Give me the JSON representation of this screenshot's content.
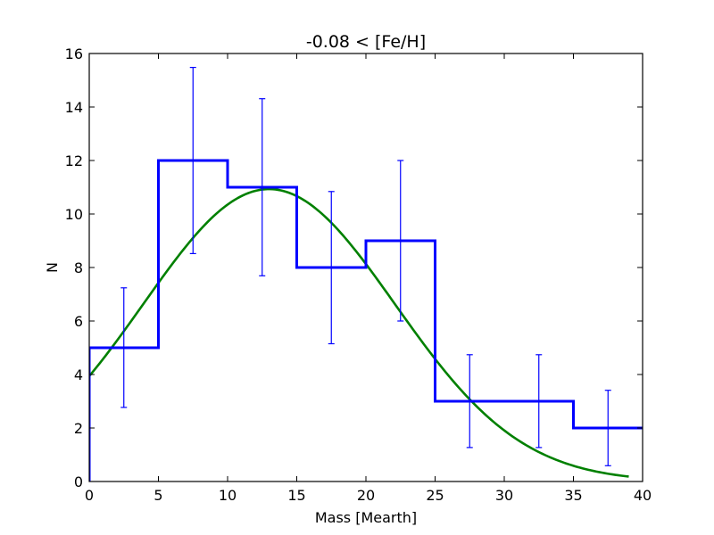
{
  "chart_data": {
    "type": "histogram",
    "title": "-0.08 < [Fe/H]",
    "xlabel": "Mass [Mearth]",
    "ylabel": "N",
    "xlim": [
      0,
      40
    ],
    "ylim": [
      0,
      16
    ],
    "xticks": [
      0,
      5,
      10,
      15,
      20,
      25,
      30,
      35,
      40
    ],
    "yticks": [
      0,
      2,
      4,
      6,
      8,
      10,
      12,
      14,
      16
    ],
    "grid": false,
    "histogram": {
      "bin_edges": [
        0,
        5,
        10,
        15,
        20,
        25,
        30,
        35,
        40
      ],
      "counts": [
        5,
        12,
        11,
        8,
        9,
        3,
        3,
        2
      ],
      "color": "#0000ff"
    },
    "errorbars": {
      "x": [
        2.5,
        7.5,
        12.5,
        17.5,
        22.5,
        27.5,
        32.5,
        37.5
      ],
      "y_low": [
        2.77,
        8.52,
        7.69,
        5.15,
        6.0,
        1.27,
        1.27,
        0.59
      ],
      "y_high": [
        7.24,
        15.48,
        14.31,
        10.84,
        12.0,
        4.74,
        4.74,
        3.41
      ],
      "color": "#0000ff"
    },
    "fit": {
      "type": "gaussian",
      "amplitude": 10.93,
      "mean": 13.0,
      "sigma": 9.1,
      "x_range": [
        0,
        39
      ],
      "color": "#008000"
    }
  }
}
